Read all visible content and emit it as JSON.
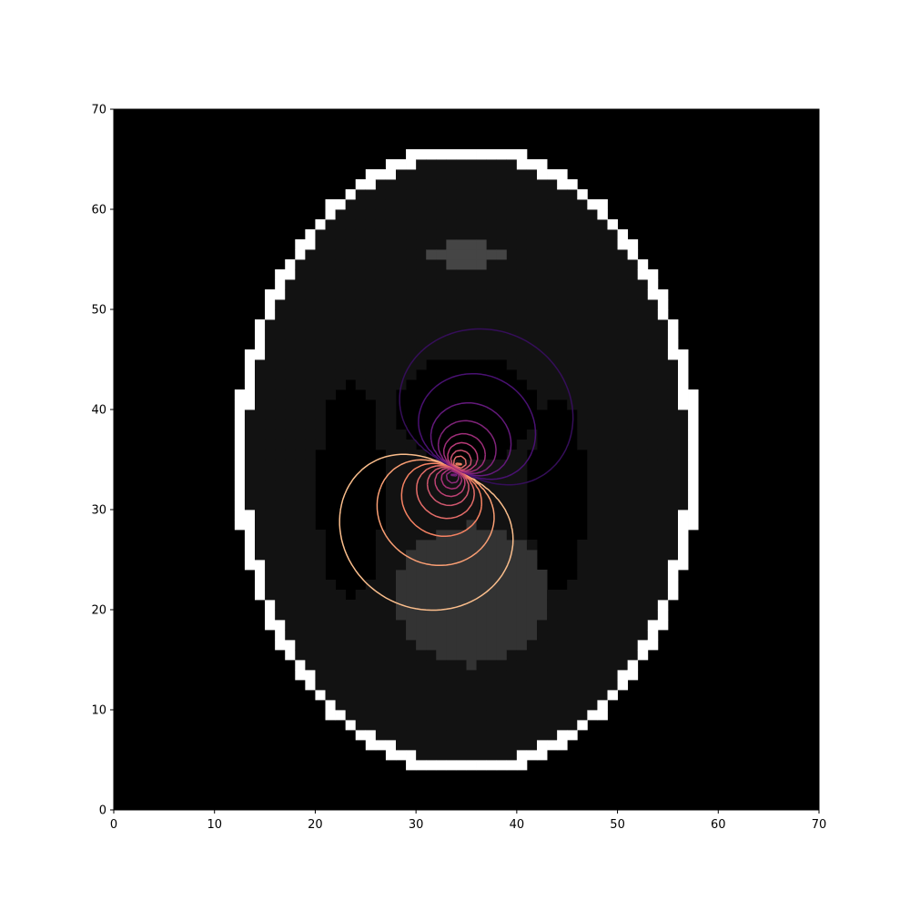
{
  "chart_data": {
    "type": "heatmap",
    "description_free": true,
    "title": "",
    "xlabel": "",
    "ylabel": "",
    "xlim": [
      0,
      70
    ],
    "ylim": [
      0,
      70
    ],
    "x_ticks": [
      0,
      10,
      20,
      30,
      40,
      50,
      60,
      70
    ],
    "y_ticks": [
      0,
      10,
      20,
      30,
      40,
      50,
      60,
      70
    ],
    "x_tick_labels": [
      "0",
      "10",
      "20",
      "30",
      "40",
      "50",
      "60",
      "70"
    ],
    "y_tick_labels": [
      "0",
      "10",
      "20",
      "30",
      "40",
      "50",
      "60",
      "70"
    ],
    "grid": false,
    "background_image": {
      "colormap": "gray",
      "regions": [
        {
          "name": "skull",
          "shape": "ellipse-ring",
          "cx": 35,
          "cy": 35,
          "rx": 23,
          "ry": 31.5,
          "thickness": 1.2,
          "value": 1.0
        },
        {
          "name": "brain",
          "shape": "ellipse",
          "cx": 35,
          "cy": 35,
          "rx": 21.8,
          "ry": 30.3,
          "value": 0.07
        },
        {
          "name": "ventricle-left",
          "shape": "ellipse",
          "cx": 23.5,
          "cy": 32,
          "rx": 3.2,
          "ry": 11,
          "value": 0.0
        },
        {
          "name": "ventricle-right",
          "shape": "ellipse",
          "cx": 44,
          "cy": 31.5,
          "rx": 2.8,
          "ry": 10,
          "value": 0.0
        },
        {
          "name": "central-dark",
          "shape": "ellipse",
          "cx": 35,
          "cy": 40,
          "rx": 7,
          "ry": 5.5,
          "value": 0.0
        },
        {
          "name": "lesion",
          "shape": "ellipse",
          "cx": 35.5,
          "cy": 21.5,
          "rx": 7.5,
          "ry": 7,
          "value": 0.2
        },
        {
          "name": "top-blob",
          "shape": "ellipse",
          "cx": 35,
          "cy": 55.5,
          "rx": 3.8,
          "ry": 1.2,
          "value": 0.27
        }
      ]
    },
    "contours": {
      "colormap": "magma",
      "source": [
        34,
        34
      ],
      "dipole_axis": [
        0.5,
        1
      ],
      "levels": 18
    },
    "colors": {
      "background": "#000000",
      "brain": "#121212",
      "skull": "#ffffff",
      "lesion": "#323232",
      "contour_low": "#0c0826",
      "contour_mid": "#b5367a",
      "contour_high": "#fcfdbf",
      "outer_contour": "#e85a61"
    }
  }
}
